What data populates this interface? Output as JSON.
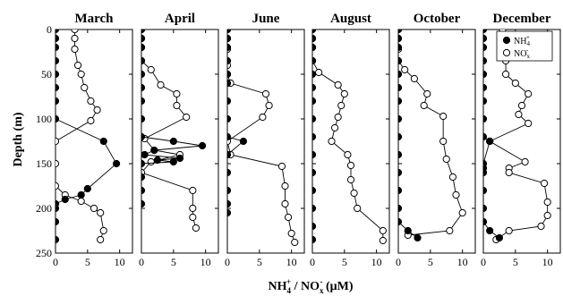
{
  "chart_data": {
    "type": "line",
    "ylabel": "Depth (m)",
    "xlabel": "NH4+ / NOx- (μM)",
    "xlabel_parts": {
      "a": "NH",
      "a_sub": "4",
      "a_sup": "+",
      "mid": " / NO",
      "b_sub": "x",
      "b_sup": "-",
      "unit": " (μM)"
    },
    "ylim": [
      0,
      250
    ],
    "y_ticks": [
      0,
      50,
      100,
      150,
      200,
      250
    ],
    "xlim": [
      0,
      12
    ],
    "x_ticks": [
      0,
      5,
      10
    ],
    "grid": false,
    "y_inverted": true,
    "legend": {
      "location": "top-right of December panel",
      "entries": [
        {
          "label": "NH4+",
          "main": "NH",
          "sub": "4",
          "sup": "+",
          "marker": "filled-circle"
        },
        {
          "label": "NOx-",
          "main": "NO",
          "sub": "x",
          "sup": "-",
          "marker": "open-circle"
        }
      ]
    },
    "colors": {
      "line": "#000000",
      "filled": "#000000",
      "open_fill": "#ffffff"
    },
    "panels": [
      {
        "title": "March",
        "series": [
          {
            "name": "NH4+",
            "points": [
              [
                0,
                0
              ],
              [
                0,
                10
              ],
              [
                0,
                20
              ],
              [
                0,
                35
              ],
              [
                0,
                50
              ],
              [
                0,
                65
              ],
              [
                0,
                80
              ],
              [
                0,
                100
              ],
              [
                7.5,
                125
              ],
              [
                9.5,
                150
              ],
              [
                5,
                178
              ],
              [
                4,
                185
              ],
              [
                1.5,
                190
              ],
              [
                0,
                195
              ],
              [
                0,
                200
              ],
              [
                0,
                215
              ],
              [
                0,
                235
              ]
            ]
          },
          {
            "name": "NOx-",
            "points": [
              [
                3,
                0
              ],
              [
                3,
                10
              ],
              [
                3,
                22
              ],
              [
                3.5,
                40
              ],
              [
                4,
                50
              ],
              [
                4.5,
                65
              ],
              [
                5.5,
                80
              ],
              [
                6.5,
                90
              ],
              [
                5.5,
                102
              ],
              [
                0,
                125
              ],
              [
                0,
                150
              ],
              [
                0,
                175
              ],
              [
                1.5,
                185
              ],
              [
                4,
                192
              ],
              [
                6,
                200
              ],
              [
                7,
                205
              ],
              [
                7.5,
                225
              ],
              [
                7,
                235
              ]
            ]
          }
        ]
      },
      {
        "title": "April",
        "series": [
          {
            "name": "NH4+",
            "points": [
              [
                0,
                0
              ],
              [
                0,
                10
              ],
              [
                0,
                20
              ],
              [
                0,
                35
              ],
              [
                0,
                50
              ],
              [
                0,
                65
              ],
              [
                0,
                80
              ],
              [
                0,
                100
              ],
              [
                0,
                120
              ],
              [
                5,
                125
              ],
              [
                9.5,
                130
              ],
              [
                2,
                135
              ],
              [
                0.5,
                140
              ],
              [
                6,
                144
              ],
              [
                2.5,
                146
              ],
              [
                5,
                148
              ],
              [
                0,
                150
              ],
              [
                0,
                165
              ],
              [
                0,
                180
              ],
              [
                0,
                195
              ]
            ]
          },
          {
            "name": "NOx-",
            "points": [
              [
                0,
                0
              ],
              [
                0,
                10
              ],
              [
                0,
                20
              ],
              [
                0,
                35
              ],
              [
                1.5,
                45
              ],
              [
                3,
                62
              ],
              [
                5.5,
                72
              ],
              [
                5.5,
                85
              ],
              [
                7,
                98
              ],
              [
                0.5,
                122
              ],
              [
                2,
                135
              ],
              [
                6,
                140
              ],
              [
                1.5,
                148
              ],
              [
                0,
                160
              ],
              [
                8,
                180
              ],
              [
                8,
                200
              ],
              [
                8,
                210
              ],
              [
                8.5,
                222
              ]
            ]
          }
        ]
      },
      {
        "title": "June",
        "series": [
          {
            "name": "NH4+",
            "points": [
              [
                0,
                0
              ],
              [
                0,
                10
              ],
              [
                0,
                20
              ],
              [
                0,
                35
              ],
              [
                0,
                50
              ],
              [
                0,
                60
              ],
              [
                0,
                80
              ],
              [
                0,
                100
              ],
              [
                0,
                120
              ],
              [
                2.5,
                125
              ],
              [
                0,
                140
              ],
              [
                0,
                160
              ],
              [
                0,
                180
              ],
              [
                0,
                195
              ],
              [
                0,
                205
              ]
            ]
          },
          {
            "name": "NOx-",
            "points": [
              [
                0,
                0
              ],
              [
                0,
                10
              ],
              [
                0,
                22
              ],
              [
                0,
                40
              ],
              [
                0,
                50
              ],
              [
                0.5,
                60
              ],
              [
                6,
                72
              ],
              [
                6.5,
                85
              ],
              [
                5.5,
                98
              ],
              [
                0,
                125
              ],
              [
                0.5,
                140
              ],
              [
                8.5,
                153
              ],
              [
                9,
                175
              ],
              [
                9,
                195
              ],
              [
                9.5,
                210
              ],
              [
                10,
                228
              ],
              [
                10.5,
                238
              ]
            ]
          }
        ]
      },
      {
        "title": "August",
        "series": [
          {
            "name": "NH4+",
            "points": [
              [
                0,
                0
              ],
              [
                0,
                10
              ],
              [
                0,
                20
              ],
              [
                0,
                35
              ],
              [
                0,
                50
              ],
              [
                0,
                65
              ],
              [
                0,
                80
              ],
              [
                0,
                100
              ],
              [
                0,
                120
              ],
              [
                0,
                140
              ],
              [
                0,
                160
              ],
              [
                0,
                180
              ],
              [
                0,
                200
              ],
              [
                0,
                220
              ],
              [
                0,
                235
              ]
            ]
          },
          {
            "name": "NOx-",
            "points": [
              [
                0,
                0
              ],
              [
                0,
                10
              ],
              [
                0,
                20
              ],
              [
                0,
                35
              ],
              [
                1,
                48
              ],
              [
                4,
                62
              ],
              [
                5,
                72
              ],
              [
                4.5,
                85
              ],
              [
                4,
                98
              ],
              [
                3.5,
                110
              ],
              [
                3,
                125
              ],
              [
                5.5,
                140
              ],
              [
                6,
                152
              ],
              [
                6,
                168
              ],
              [
                6.5,
                183
              ],
              [
                7,
                200
              ],
              [
                11,
                225
              ],
              [
                11,
                236
              ]
            ]
          }
        ]
      },
      {
        "title": "October",
        "series": [
          {
            "name": "NH4+",
            "points": [
              [
                0,
                0
              ],
              [
                0,
                10
              ],
              [
                0,
                20
              ],
              [
                0,
                35
              ],
              [
                0,
                50
              ],
              [
                0,
                65
              ],
              [
                0,
                80
              ],
              [
                0,
                100
              ],
              [
                0,
                120
              ],
              [
                0,
                140
              ],
              [
                0,
                160
              ],
              [
                0,
                180
              ],
              [
                0,
                200
              ],
              [
                0,
                215
              ],
              [
                1.5,
                225
              ],
              [
                3,
                233
              ]
            ]
          },
          {
            "name": "NOx-",
            "points": [
              [
                0,
                0
              ],
              [
                0,
                10
              ],
              [
                0,
                22
              ],
              [
                0,
                35
              ],
              [
                1,
                45
              ],
              [
                2.5,
                55
              ],
              [
                4.5,
                72
              ],
              [
                4,
                85
              ],
              [
                7,
                97
              ],
              [
                7,
                125
              ],
              [
                7.5,
                145
              ],
              [
                8.5,
                165
              ],
              [
                9,
                185
              ],
              [
                10,
                205
              ],
              [
                8,
                225
              ],
              [
                1.5,
                230
              ]
            ]
          }
        ]
      },
      {
        "title": "December",
        "series": [
          {
            "name": "NH4+",
            "points": [
              [
                0,
                0
              ],
              [
                0,
                10
              ],
              [
                0,
                20
              ],
              [
                0,
                35
              ],
              [
                0,
                50
              ],
              [
                0,
                65
              ],
              [
                0,
                80
              ],
              [
                0,
                100
              ],
              [
                0,
                120
              ],
              [
                1,
                125
              ],
              [
                0,
                150
              ],
              [
                0,
                155
              ],
              [
                0,
                160
              ],
              [
                0,
                180
              ],
              [
                0,
                200
              ],
              [
                0,
                215
              ],
              [
                1,
                225
              ],
              [
                2.5,
                233
              ]
            ]
          },
          {
            "name": "NOx-",
            "points": [
              [
                3,
                0
              ],
              [
                3,
                10
              ],
              [
                3,
                20
              ],
              [
                3.5,
                35
              ],
              [
                3.5,
                50
              ],
              [
                5,
                60
              ],
              [
                7,
                72
              ],
              [
                6,
                85
              ],
              [
                5.5,
                95
              ],
              [
                7,
                105
              ],
              [
                1,
                125
              ],
              [
                6.5,
                148
              ],
              [
                4,
                155
              ],
              [
                4,
                160
              ],
              [
                9.5,
                172
              ],
              [
                10,
                193
              ],
              [
                10,
                208
              ],
              [
                9,
                220
              ],
              [
                4,
                225
              ],
              [
                2,
                235
              ]
            ]
          }
        ]
      }
    ]
  }
}
